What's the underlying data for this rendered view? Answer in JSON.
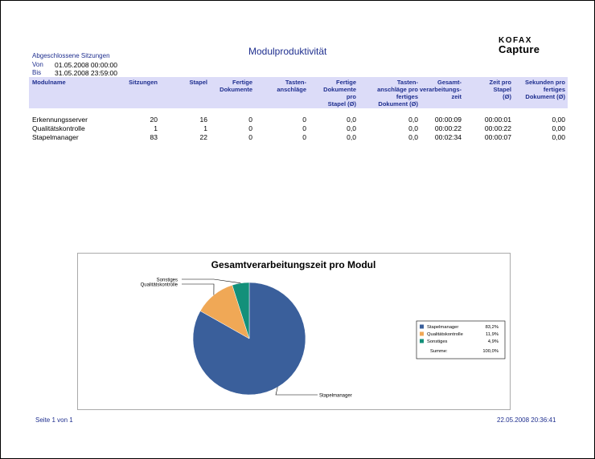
{
  "header": {
    "section": "Abgeschlossene Sitzungen",
    "from_label": "Von",
    "from_value": "01.05.2008  00:00:00",
    "to_label": "Bis",
    "to_value": "31.05.2008  23:59:00",
    "title": "Modulproduktivität",
    "logo_top": "KOFAX",
    "logo_bottom": "Capture"
  },
  "table": {
    "columns": [
      "Modulname",
      "Sitzungen",
      "Stapel",
      "Fertige\nDokumente",
      "Tasten-\nanschläge",
      "Fertige\nDokumente\npro\nStapel (Ø)",
      "Tasten-\nanschläge pro\nfertiges\nDokument (Ø)",
      "Gesamt-\nverarbeitungs-\nzeit",
      "Zeit pro\nStapel\n(Ø)",
      "Sekunden pro\nfertiges\nDokument (Ø)"
    ],
    "rows": [
      [
        "Erkennungsserver",
        "20",
        "16",
        "0",
        "0",
        "0,0",
        "0,0",
        "00:00:09",
        "00:00:01",
        "0,00"
      ],
      [
        "Qualitätskontrolle",
        "1",
        "1",
        "0",
        "0",
        "0,0",
        "0,0",
        "00:00:22",
        "00:00:22",
        "0,00"
      ],
      [
        "Stapelmanager",
        "83",
        "22",
        "0",
        "0",
        "0,0",
        "0,0",
        "00:02:34",
        "00:00:07",
        "0,00"
      ]
    ]
  },
  "chart_data": {
    "type": "pie",
    "title": "Gesamtverarbeitungszeit pro Modul",
    "slices": [
      {
        "label": "Stapelmanager",
        "value": 83.2,
        "display": "83,2%",
        "color": "#3a5f9b"
      },
      {
        "label": "Qualitätskontrolle",
        "value": 11.9,
        "display": "11,9%",
        "color": "#f0a856"
      },
      {
        "label": "Sonstiges",
        "value": 4.9,
        "display": "4,9%",
        "color": "#13907a"
      }
    ],
    "sum_label": "Summe:",
    "sum_value": "100,0%",
    "legend_position": "right"
  },
  "footer": {
    "page": "Seite 1 von 1",
    "timestamp": "22.05.2008 20:36:41"
  }
}
